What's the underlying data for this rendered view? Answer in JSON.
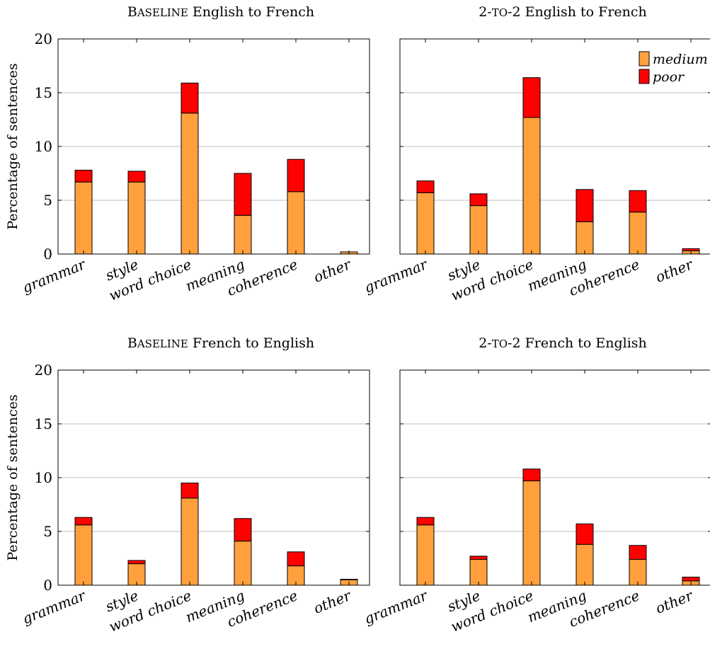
{
  "chart_data": [
    {
      "type": "bar",
      "stacked": true,
      "title_lead": "B",
      "title_sc": "ASELINE",
      "title_rest": " English to French",
      "ylabel": "Percentage of sentences",
      "ylim": [
        0,
        20
      ],
      "yticks": [
        "0",
        "5",
        "10",
        "15",
        "20"
      ],
      "grid": true,
      "categories": [
        "grammar",
        "style",
        "word choice",
        "meaning",
        "coherence",
        "other"
      ],
      "series": [
        {
          "name": "medium",
          "values": [
            6.7,
            6.7,
            13.1,
            3.6,
            5.8,
            0.2
          ]
        },
        {
          "name": "poor",
          "values": [
            1.1,
            1.0,
            2.8,
            3.9,
            3.0,
            0.0
          ]
        }
      ]
    },
    {
      "type": "bar",
      "stacked": true,
      "title_lead": "2-",
      "title_sc": "TO",
      "title_rest": "-2 English to French",
      "ylabel": "",
      "ylim": [
        0,
        20
      ],
      "yticks": [],
      "grid": true,
      "categories": [
        "grammar",
        "style",
        "word choice",
        "meaning",
        "coherence",
        "other"
      ],
      "series": [
        {
          "name": "medium",
          "values": [
            5.7,
            4.5,
            12.7,
            3.0,
            3.9,
            0.3
          ]
        },
        {
          "name": "poor",
          "values": [
            1.1,
            1.1,
            3.7,
            3.0,
            2.0,
            0.2
          ]
        }
      ],
      "legend_position": "top-right",
      "legend": [
        "medium",
        "poor"
      ]
    },
    {
      "type": "bar",
      "stacked": true,
      "title_lead": "B",
      "title_sc": "ASELINE",
      "title_rest": " French to English",
      "ylabel": "Percentage of sentences",
      "ylim": [
        0,
        20
      ],
      "yticks": [
        "0",
        "5",
        "10",
        "15",
        "20"
      ],
      "grid": true,
      "categories": [
        "grammar",
        "style",
        "word choice",
        "meaning",
        "coherence",
        "other"
      ],
      "series": [
        {
          "name": "medium",
          "values": [
            5.6,
            2.0,
            8.1,
            4.1,
            1.8,
            0.5
          ]
        },
        {
          "name": "poor",
          "values": [
            0.7,
            0.3,
            1.4,
            2.1,
            1.3,
            0.05
          ]
        }
      ]
    },
    {
      "type": "bar",
      "stacked": true,
      "title_lead": "2-",
      "title_sc": "TO",
      "title_rest": "-2 French to English",
      "ylabel": "",
      "ylim": [
        0,
        20
      ],
      "yticks": [],
      "grid": true,
      "categories": [
        "grammar",
        "style",
        "word choice",
        "meaning",
        "coherence",
        "other"
      ],
      "series": [
        {
          "name": "medium",
          "values": [
            5.6,
            2.4,
            9.7,
            3.8,
            2.4,
            0.4
          ]
        },
        {
          "name": "poor",
          "values": [
            0.7,
            0.3,
            1.1,
            1.9,
            1.3,
            0.35
          ]
        }
      ]
    }
  ],
  "colors": {
    "medium": "#ffa03d",
    "poor": "#ff0000",
    "grid": "#bfbfbf",
    "axis": "#000000"
  }
}
